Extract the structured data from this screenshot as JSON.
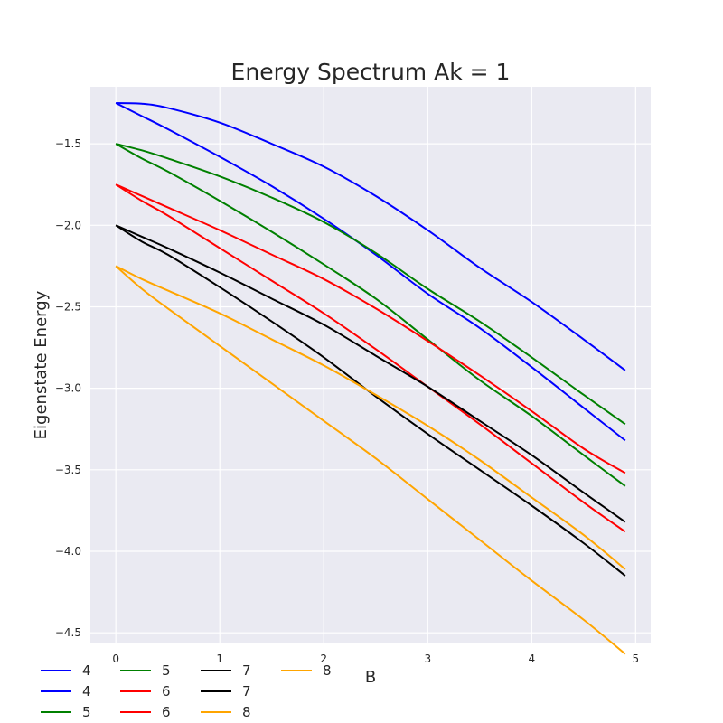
{
  "chart_data": {
    "type": "line",
    "title": "Energy Spectrum Ak = 1",
    "xlabel": "B",
    "ylabel": "Eigenstate Energy",
    "xlim": [
      -0.245,
      5.145
    ],
    "ylim": [
      -4.56,
      -1.15
    ],
    "xticks": [
      0,
      1,
      2,
      3,
      4,
      5
    ],
    "xtick_labels": [
      "0",
      "1",
      "2",
      "3",
      "4",
      "5"
    ],
    "yticks": [
      -1.5,
      -2.0,
      -2.5,
      -3.0,
      -3.5,
      -4.0,
      -4.5
    ],
    "ytick_labels": [
      "−1.5",
      "−2.0",
      "−2.5",
      "−3.0",
      "−3.5",
      "−4.0",
      "−4.5"
    ],
    "grid": true,
    "legend_position": "bottom-left",
    "legend_columns": 4,
    "series": [
      {
        "name": "4",
        "color": "#0000ff",
        "x": [
          0,
          0.25,
          0.5,
          1,
          1.5,
          2,
          2.5,
          3,
          3.5,
          4,
          4.5,
          4.9
        ],
        "y": [
          -1.25,
          -1.254,
          -1.28,
          -1.37,
          -1.5,
          -1.64,
          -1.82,
          -2.03,
          -2.26,
          -2.47,
          -2.7,
          -2.89
        ]
      },
      {
        "name": "4",
        "color": "#0000ff",
        "x": [
          0,
          0.25,
          0.5,
          1,
          1.5,
          2,
          2.5,
          3,
          3.5,
          4,
          4.5,
          4.9
        ],
        "y": [
          -1.25,
          -1.33,
          -1.41,
          -1.58,
          -1.76,
          -1.96,
          -2.18,
          -2.42,
          -2.63,
          -2.87,
          -3.12,
          -3.32
        ]
      },
      {
        "name": "5",
        "color": "#008000",
        "x": [
          0,
          0.25,
          0.5,
          1,
          1.5,
          2,
          2.5,
          3,
          3.5,
          4,
          4.5,
          4.9
        ],
        "y": [
          -1.5,
          -1.54,
          -1.59,
          -1.7,
          -1.83,
          -1.98,
          -2.17,
          -2.39,
          -2.59,
          -2.81,
          -3.04,
          -3.22
        ]
      },
      {
        "name": "5",
        "color": "#008000",
        "x": [
          0,
          0.25,
          0.5,
          1,
          1.5,
          2,
          2.5,
          3,
          3.5,
          4,
          4.5,
          4.9
        ],
        "y": [
          -1.5,
          -1.59,
          -1.67,
          -1.85,
          -2.04,
          -2.24,
          -2.45,
          -2.7,
          -2.95,
          -3.17,
          -3.41,
          -3.6
        ]
      },
      {
        "name": "6",
        "color": "#ff0000",
        "x": [
          0,
          0.25,
          0.5,
          1,
          1.5,
          2,
          2.5,
          3,
          3.5,
          4,
          4.5,
          4.9
        ],
        "y": [
          -1.75,
          -1.82,
          -1.89,
          -2.03,
          -2.18,
          -2.33,
          -2.51,
          -2.71,
          -2.92,
          -3.14,
          -3.37,
          -3.52
        ]
      },
      {
        "name": "6",
        "color": "#ff0000",
        "x": [
          0,
          0.25,
          0.5,
          1,
          1.5,
          2,
          2.5,
          3,
          3.5,
          4,
          4.5,
          4.9
        ],
        "y": [
          -1.75,
          -1.85,
          -1.94,
          -2.14,
          -2.34,
          -2.54,
          -2.76,
          -2.99,
          -3.22,
          -3.46,
          -3.7,
          -3.88
        ]
      },
      {
        "name": "7",
        "color": "#000000",
        "x": [
          0,
          0.25,
          0.5,
          1,
          1.5,
          2,
          2.5,
          3,
          3.5,
          4,
          4.5,
          4.9
        ],
        "y": [
          -2.0,
          -2.07,
          -2.14,
          -2.29,
          -2.45,
          -2.61,
          -2.8,
          -2.99,
          -3.2,
          -3.41,
          -3.64,
          -3.82
        ]
      },
      {
        "name": "7",
        "color": "#000000",
        "x": [
          0,
          0.25,
          0.5,
          1,
          1.5,
          2,
          2.5,
          3,
          3.5,
          4,
          4.5,
          4.9
        ],
        "y": [
          -2.0,
          -2.1,
          -2.18,
          -2.38,
          -2.59,
          -2.81,
          -3.05,
          -3.28,
          -3.5,
          -3.72,
          -3.95,
          -4.15
        ]
      },
      {
        "name": "8",
        "color": "#ffa500",
        "x": [
          0,
          0.25,
          0.5,
          1,
          1.5,
          2,
          2.5,
          3,
          3.5,
          4,
          4.5,
          4.9
        ],
        "y": [
          -2.25,
          -2.33,
          -2.4,
          -2.54,
          -2.7,
          -2.86,
          -3.04,
          -3.23,
          -3.44,
          -3.67,
          -3.9,
          -4.11
        ]
      },
      {
        "name": "8",
        "color": "#ffa500",
        "x": [
          0,
          0.25,
          0.5,
          1,
          1.5,
          2,
          2.5,
          3,
          3.5,
          4,
          4.5,
          4.9
        ],
        "y": [
          -2.25,
          -2.39,
          -2.51,
          -2.74,
          -2.97,
          -3.2,
          -3.43,
          -3.68,
          -3.93,
          -4.18,
          -4.42,
          -4.63
        ]
      }
    ]
  }
}
